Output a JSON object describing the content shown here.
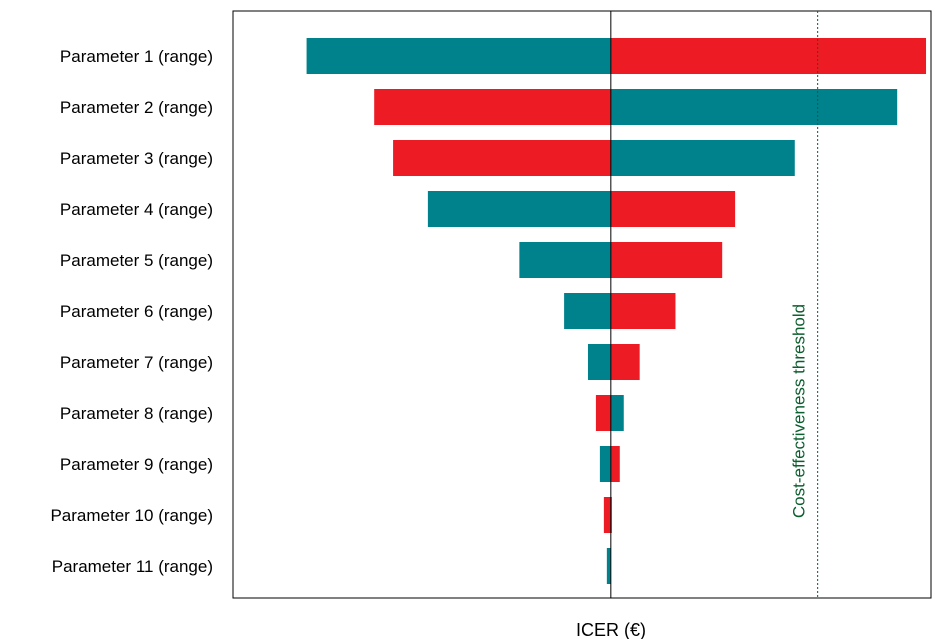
{
  "chart_data": {
    "type": "bar",
    "subtype": "tornado",
    "xlabel": "ICER (€)",
    "ylabel": "",
    "categories": [
      "Parameter 1 (range)",
      "Parameter 2 (range)",
      "Parameter 3 (range)",
      "Parameter 4 (range)",
      "Parameter 5 (range)",
      "Parameter 6 (range)",
      "Parameter 7 (range)",
      "Parameter 8 (range)",
      "Parameter 9 (range)",
      "Parameter 10 (range)",
      "Parameter 11 (range)"
    ],
    "bars": [
      {
        "low": -306,
        "high": 317,
        "left_color": "#00828C",
        "right_color": "#ED1C24"
      },
      {
        "low": -238,
        "high": 288,
        "left_color": "#ED1C24",
        "right_color": "#00828C"
      },
      {
        "low": -219,
        "high": 185,
        "left_color": "#ED1C24",
        "right_color": "#00828C"
      },
      {
        "low": -184,
        "high": 125,
        "left_color": "#00828C",
        "right_color": "#ED1C24"
      },
      {
        "low": -92,
        "high": 112,
        "left_color": "#00828C",
        "right_color": "#ED1C24"
      },
      {
        "low": -47,
        "high": 65,
        "left_color": "#00828C",
        "right_color": "#ED1C24"
      },
      {
        "low": -23,
        "high": 29,
        "left_color": "#00828C",
        "right_color": "#ED1C24"
      },
      {
        "low": -15,
        "high": 13,
        "left_color": "#ED1C24",
        "right_color": "#00828C"
      },
      {
        "low": -11,
        "high": 9,
        "left_color": "#00828C",
        "right_color": "#ED1C24"
      },
      {
        "low": -7,
        "high": 1,
        "left_color": "#ED1C24",
        "right_color": "#ED1C24"
      },
      {
        "low": -4,
        "high": 0,
        "left_color": "#00828C",
        "right_color": "#00828C"
      }
    ],
    "base_value": 0,
    "xlim": [
      -380,
      322
    ],
    "threshold": {
      "value": 208,
      "label": "Cost-effectiveness threshold",
      "color": "#0B5E2E",
      "style": "dotted"
    },
    "grid": false,
    "legend": "none"
  },
  "colors": {
    "teal": "#00828C",
    "red": "#ED1C24",
    "threshold": "#0B5E2E"
  }
}
